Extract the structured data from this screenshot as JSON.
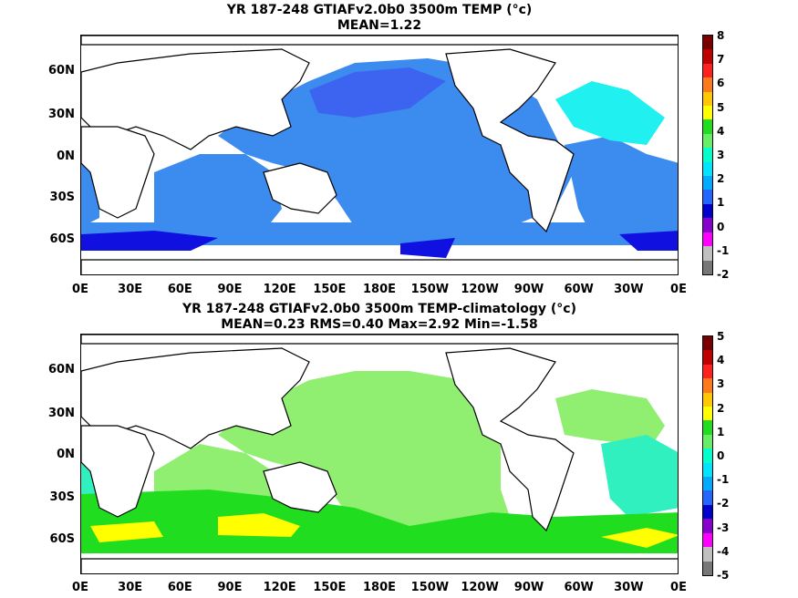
{
  "top": {
    "title_line1": "YR 187-248 GTIAFv2.0b0 3500m TEMP (°c)",
    "title_line2": "MEAN=1.22",
    "colorbar_labels": [
      "8",
      "7",
      "6",
      "5",
      "4",
      "3",
      "2",
      "1",
      "0",
      "-1",
      "-2"
    ],
    "colors": [
      "#7a0000",
      "#c00000",
      "#ff2020",
      "#ff7a1a",
      "#ffc800",
      "#ffff00",
      "#20dd20",
      "#66ee66",
      "#00ffcc",
      "#00e5ff",
      "#00aaff",
      "#2266ff",
      "#0000cc",
      "#8800cc",
      "#ff00ff",
      "#c0c0c0",
      "#777777"
    ],
    "color_roles": {
      "ocean_main": "#3c8cf0",
      "deep_south": "#1010e0",
      "north_atlantic": "#20f0f0",
      "pacific_north": "#3c64f0"
    }
  },
  "bottom": {
    "title_line1": "YR 187-248 GTIAFv2.0b0 3500m TEMP-climatology (°c)",
    "title_line2": "MEAN=0.23   RMS=0.40   Max=2.92   Min=-1.58",
    "colorbar_labels": [
      "5",
      "4",
      "3",
      "2",
      "1",
      "0",
      "-1",
      "-2",
      "-3",
      "-4",
      "-5"
    ],
    "colors": [
      "#7a0000",
      "#c00000",
      "#ff2020",
      "#ff7a1a",
      "#ffc800",
      "#ffff00",
      "#20dd20",
      "#66ee66",
      "#00ffcc",
      "#00e5ff",
      "#00aaff",
      "#2266ff",
      "#0000cc",
      "#8800cc",
      "#ff00ff",
      "#c0c0c0",
      "#777777"
    ],
    "color_roles": {
      "ocean_main": "#90ee70",
      "south_band": "#20dd20",
      "south_warm": "#ffff00",
      "atlantic": "#30f0c0"
    }
  },
  "lat_labels": [
    "60N",
    "30N",
    "0N",
    "30S",
    "60S"
  ],
  "lon_labels": [
    "0E",
    "30E",
    "60E",
    "90E",
    "120E",
    "150E",
    "180E",
    "150W",
    "120W",
    "90W",
    "60W",
    "30W",
    "0E"
  ]
}
